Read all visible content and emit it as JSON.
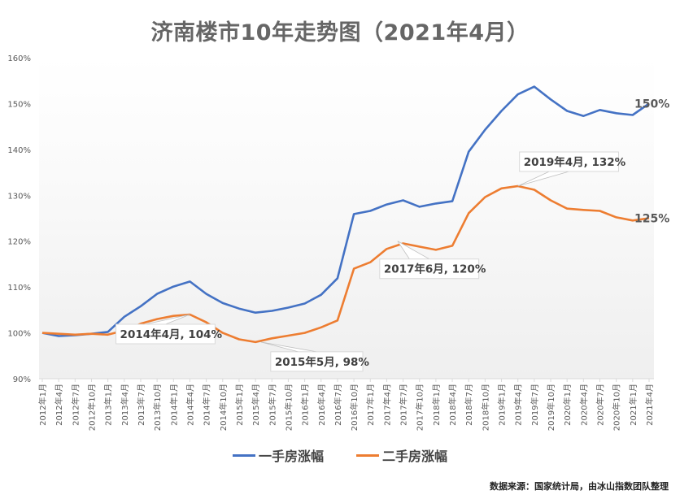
{
  "chart_data": {
    "type": "line",
    "title": "济南楼市10年走势图（2021年4月）",
    "xlabel": "",
    "ylabel": "",
    "ylim": [
      90,
      160
    ],
    "yticks": [
      "90%",
      "100%",
      "110%",
      "120%",
      "130%",
      "140%",
      "150%",
      "160%"
    ],
    "grid": false,
    "legend_position": "bottom",
    "x": [
      "2012年1月",
      "2012年4月",
      "2012年7月",
      "2012年10月",
      "2013年1月",
      "2013年4月",
      "2013年7月",
      "2013年10月",
      "2014年1月",
      "2014年4月",
      "2014年7月",
      "2014年10月",
      "2015年1月",
      "2015年4月",
      "2015年7月",
      "2015年10月",
      "2016年1月",
      "2016年4月",
      "2016年7月",
      "2016年10月",
      "2017年1月",
      "2017年4月",
      "2017年7月",
      "2017年10月",
      "2018年1月",
      "2018年4月",
      "2018年7月",
      "2018年10月",
      "2019年1月",
      "2019年4月",
      "2019年7月",
      "2019年10月",
      "2020年1月",
      "2020年4月",
      "2020年7月",
      "2020年10月",
      "2021年1月",
      "2021年4月"
    ],
    "series": [
      {
        "name": "一手房涨幅",
        "color": "#4472C4",
        "values": [
          100,
          99.3,
          99.5,
          99.8,
          100.2,
          103.5,
          105.8,
          108.5,
          110.1,
          111.2,
          108.5,
          106.5,
          105.3,
          104.4,
          104.8,
          105.5,
          106.4,
          108.3,
          111.9,
          125.9,
          126.6,
          128,
          128.9,
          127.5,
          128.2,
          128.7,
          139.5,
          144.3,
          148.4,
          152,
          153.7,
          150.9,
          148.4,
          147.3,
          148.6,
          147.9,
          147.5,
          150
        ]
      },
      {
        "name": "二手房涨幅",
        "color": "#ED7D31",
        "values": [
          100,
          99.8,
          99.6,
          99.8,
          99.6,
          100.5,
          102,
          103,
          103.7,
          104,
          102.3,
          100,
          98.6,
          98,
          98.8,
          99.4,
          100,
          101.2,
          102.7,
          114,
          115.4,
          118.3,
          119.5,
          118.8,
          118.1,
          119,
          126.1,
          129.6,
          131.5,
          132,
          131.2,
          128.9,
          127.1,
          126.8,
          126.6,
          125.2,
          124.5,
          125
        ]
      }
    ],
    "annotations": [
      {
        "series": 1,
        "month": "2014年4月",
        "text": "2014年4月, 104%"
      },
      {
        "series": 1,
        "month": "2015年5月",
        "text": "2015年5月, 98%"
      },
      {
        "series": 1,
        "month": "2017年6月",
        "text": "2017年6月, 120%"
      },
      {
        "series": 1,
        "month": "2019年4月",
        "text": "2019年4月, 132%"
      },
      {
        "series": 0,
        "month": "2021年4月",
        "text": "150%"
      },
      {
        "series": 1,
        "month": "2021年4月",
        "text": "125%"
      }
    ],
    "source": "数据来源：国家统计局，由冰山指数团队整理"
  }
}
